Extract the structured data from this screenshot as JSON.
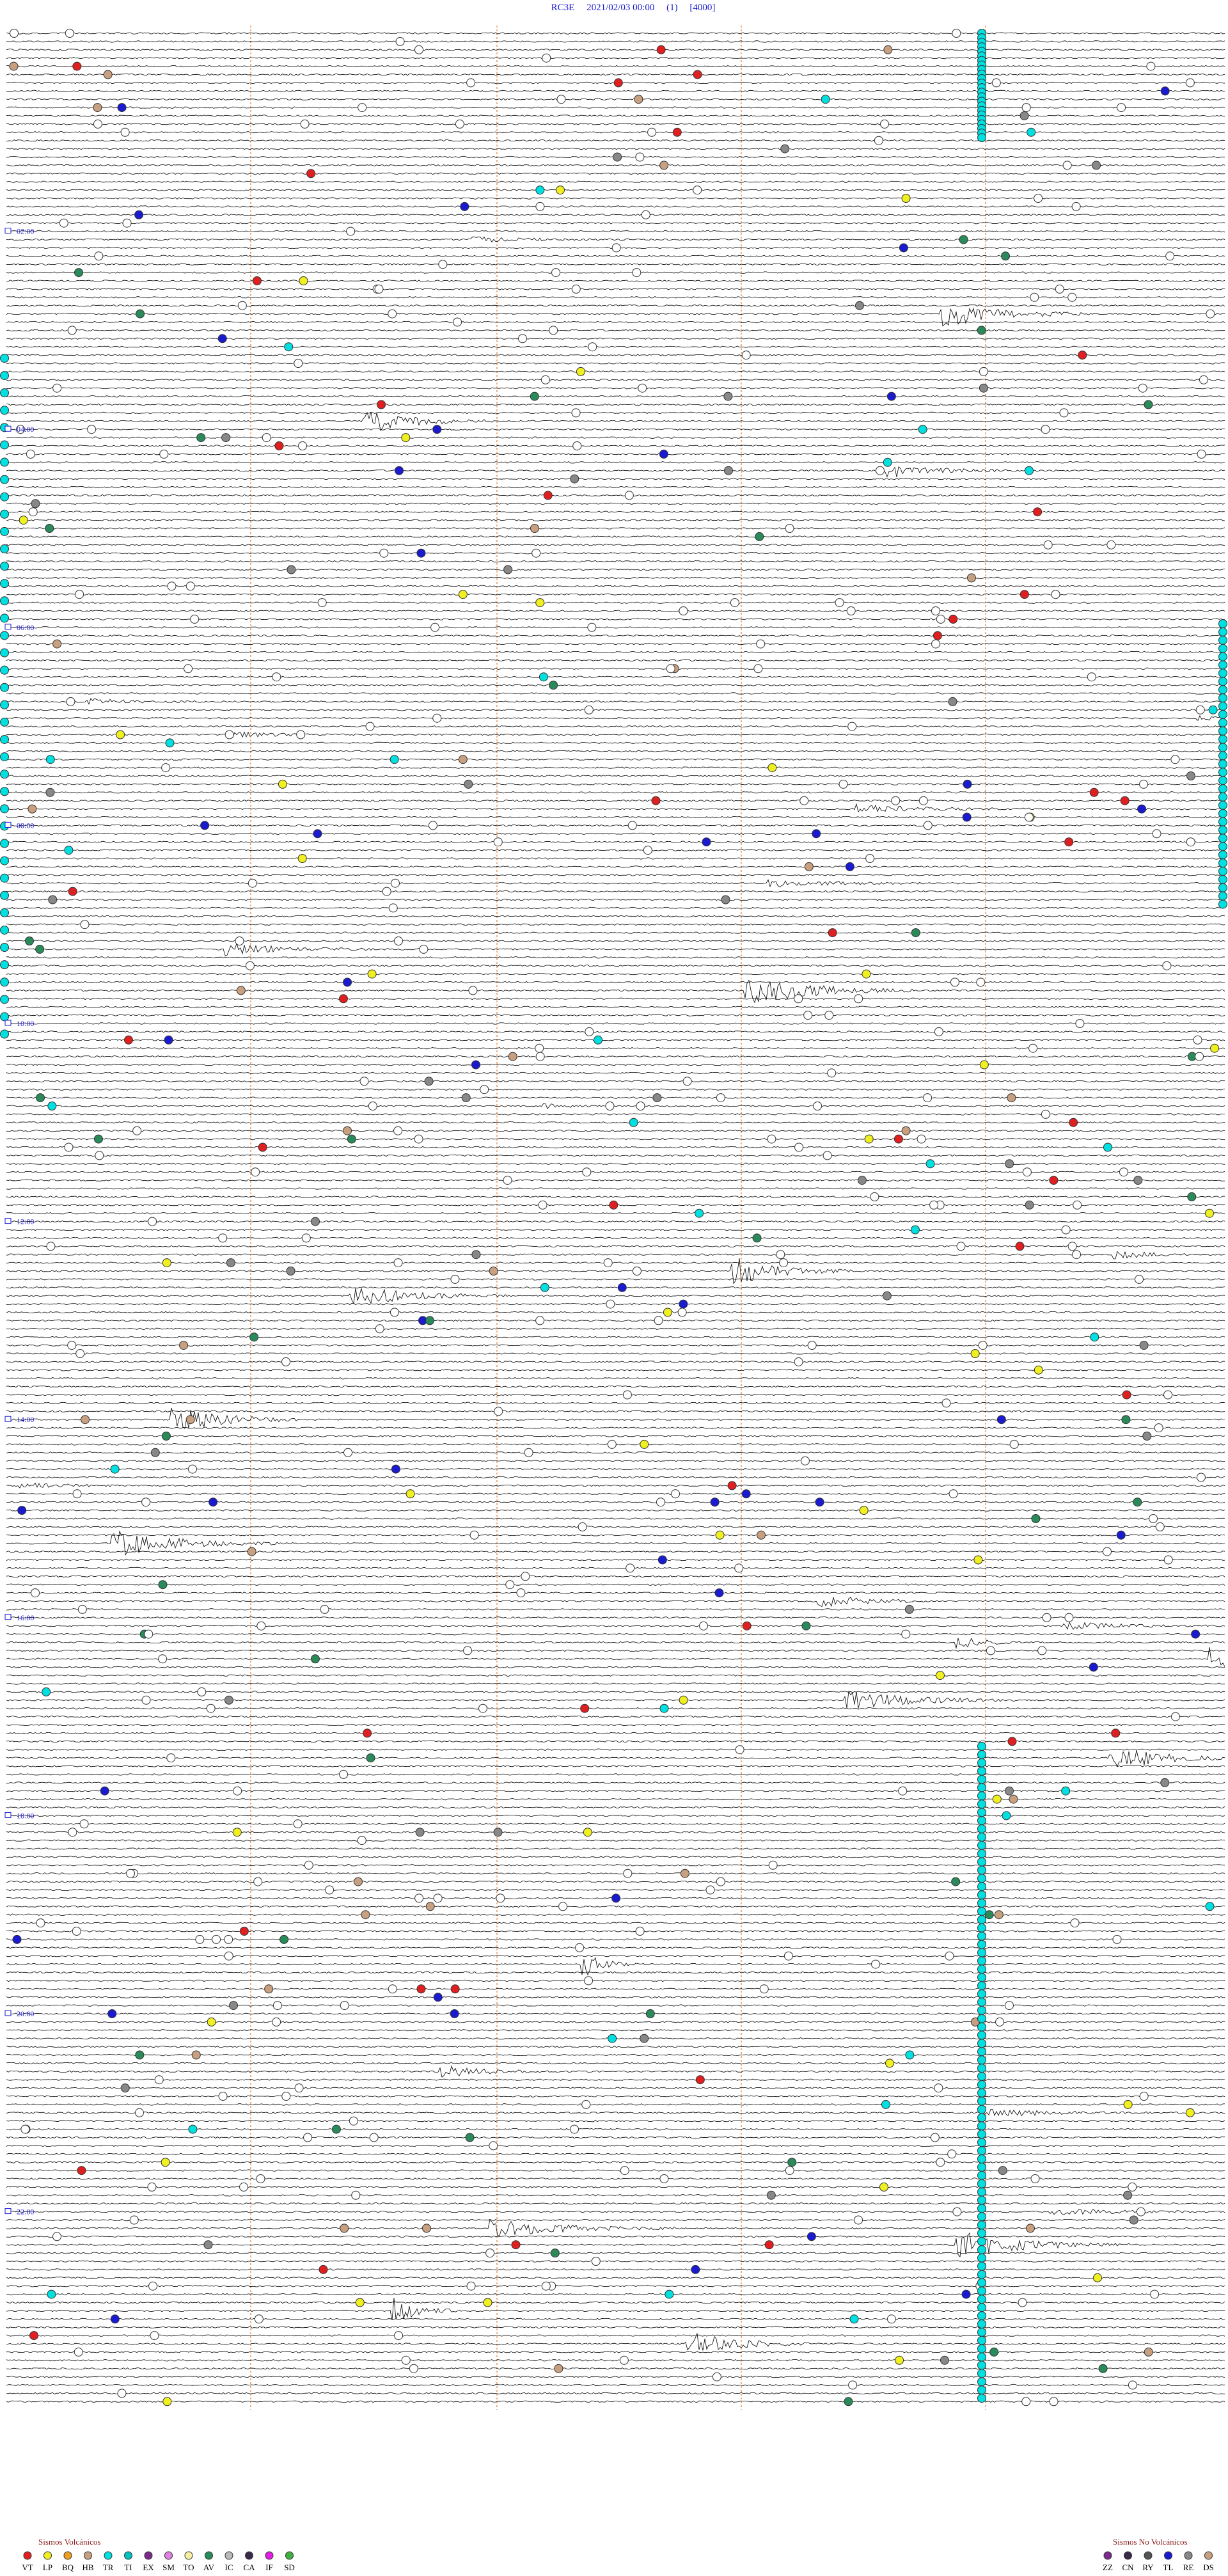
{
  "header": {
    "title": "RC3E     2021/02/03 00:00     (1)     [4000]"
  },
  "time_labels": [
    "02:00",
    "04:00",
    "06:00",
    "08:00",
    "10:00",
    "12:00",
    "14:00",
    "16:00",
    "18:00",
    "20:00",
    "22:00"
  ],
  "legend_volcanic": {
    "title": "Sismos Volcánicos",
    "codes": [
      "VT",
      "LP",
      "BQ",
      "HB",
      "TR",
      "TI",
      "EX",
      "SM",
      "TO",
      "AV",
      "IC",
      "CA",
      "IF",
      "SD"
    ]
  },
  "legend_non_volcanic": {
    "title": "Sismos No Volcánicos",
    "codes": [
      "ZZ",
      "CN",
      "RY",
      "TL",
      "RE",
      "DS"
    ]
  }
}
